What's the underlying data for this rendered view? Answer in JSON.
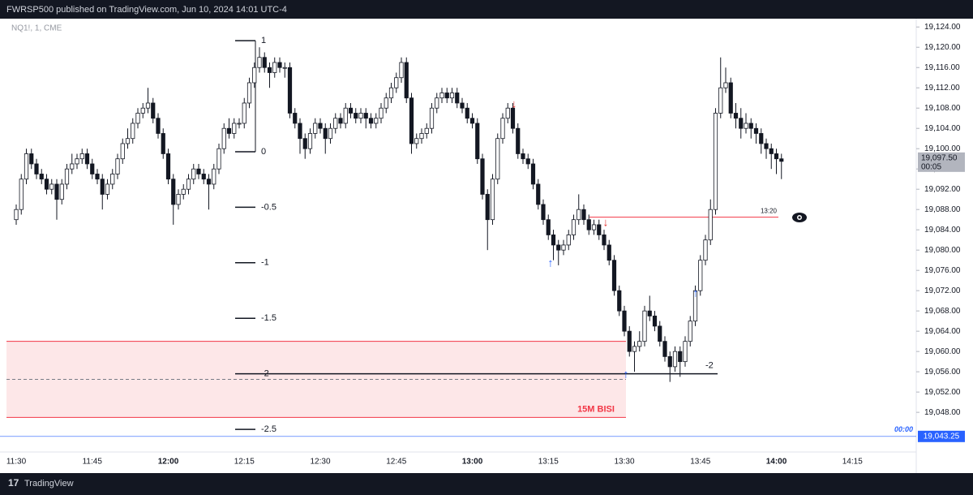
{
  "chart_data": {
    "type": "candlestick",
    "header": "FWRSP500 published on TradingView.com, Jun 10, 2024 14:01 UTC-4",
    "symbol": "NQ1!, 1, CME",
    "brand": "TradingView",
    "ylim": [
      19042.9,
      19125.8
    ],
    "yticks": [
      {
        "value": 19048,
        "label": "19,048.00"
      },
      {
        "value": 19052,
        "label": "19,052.00"
      },
      {
        "value": 19056,
        "label": "19,056.00"
      },
      {
        "value": 19060,
        "label": "19,060.00"
      },
      {
        "value": 19064,
        "label": "19,064.00"
      },
      {
        "value": 19068,
        "label": "19,068.00"
      },
      {
        "value": 19072,
        "label": "19,072.00"
      },
      {
        "value": 19076,
        "label": "19,076.00"
      },
      {
        "value": 19080,
        "label": "19,080.00"
      },
      {
        "value": 19084,
        "label": "19,084.00"
      },
      {
        "value": 19088,
        "label": "19,088.00"
      },
      {
        "value": 19092,
        "label": "19,092.00"
      },
      {
        "value": 19096,
        "label": "19,096.00"
      },
      {
        "value": 19100,
        "label": "19,100.00"
      },
      {
        "value": 19104,
        "label": "19,104.00"
      },
      {
        "value": 19108,
        "label": "19,108.00"
      },
      {
        "value": 19112,
        "label": "19,112.00"
      },
      {
        "value": 19116,
        "label": "19,116.00"
      },
      {
        "value": 19120,
        "label": "19,120.00"
      },
      {
        "value": 19124,
        "label": "19,124.00"
      }
    ],
    "xticks": [
      "11:30",
      "11:45",
      "12:00",
      "12:15",
      "12:30",
      "12:45",
      "13:00",
      "13:15",
      "13:30",
      "13:45",
      "14:00",
      "14:15"
    ],
    "ohlc": [
      [
        19086,
        19089,
        19085,
        19088
      ],
      [
        19088,
        19095,
        19087,
        19094
      ],
      [
        19094,
        19100,
        19093,
        19099
      ],
      [
        19099,
        19100,
        19096,
        19097
      ],
      [
        19097,
        19098,
        19094,
        19095
      ],
      [
        19095,
        19096,
        19093,
        19094
      ],
      [
        19094,
        19095,
        19091,
        19092
      ],
      [
        19092,
        19094,
        19091,
        19093
      ],
      [
        19093,
        19094,
        19086,
        19090
      ],
      [
        19090,
        19094,
        19089,
        19093
      ],
      [
        19093,
        19097,
        19092,
        19096
      ],
      [
        19096,
        19099,
        19095,
        19097
      ],
      [
        19097,
        19099,
        19096,
        19098
      ],
      [
        19098,
        19100,
        19097,
        19099
      ],
      [
        19099,
        19100,
        19096,
        19097
      ],
      [
        19097,
        19098,
        19094,
        19095
      ],
      [
        19095,
        19096,
        19093,
        19094
      ],
      [
        19094,
        19095,
        19088,
        19091
      ],
      [
        19091,
        19094,
        19090,
        19093
      ],
      [
        19093,
        19096,
        19092,
        19095
      ],
      [
        19095,
        19099,
        19094,
        19098
      ],
      [
        19098,
        19102,
        19097,
        19101
      ],
      [
        19101,
        19104,
        19100,
        19102
      ],
      [
        19102,
        19106,
        19101,
        19105
      ],
      [
        19105,
        19108,
        19104,
        19107
      ],
      [
        19107,
        19109,
        19106,
        19108
      ],
      [
        19108,
        19112,
        19107,
        19109
      ],
      [
        19109,
        19110,
        19105,
        19106
      ],
      [
        19106,
        19107,
        19102,
        19103
      ],
      [
        19103,
        19104,
        19098,
        19099
      ],
      [
        19099,
        19100,
        19093,
        19094
      ],
      [
        19094,
        19095,
        19085,
        19089
      ],
      [
        19089,
        19092,
        19088,
        19091
      ],
      [
        19091,
        19093,
        19090,
        19092
      ],
      [
        19092,
        19095,
        19091,
        19094
      ],
      [
        19094,
        19097,
        19093,
        19096
      ],
      [
        19096,
        19097,
        19094,
        19095
      ],
      [
        19095,
        19096,
        19093,
        19094
      ],
      [
        19094,
        19095,
        19088,
        19093
      ],
      [
        19093,
        19097,
        19092,
        19096
      ],
      [
        19096,
        19101,
        19095,
        19100
      ],
      [
        19100,
        19105,
        19099,
        19104
      ],
      [
        19104,
        19106,
        19102,
        19103
      ],
      [
        19103,
        19106,
        19102,
        19105
      ],
      [
        19105,
        19106,
        19104,
        19105
      ],
      [
        19105,
        19110,
        19104,
        19109
      ],
      [
        19109,
        19114,
        19108,
        19113
      ],
      [
        19113,
        19117,
        19112,
        19116
      ],
      [
        19116,
        19120,
        19115,
        19118
      ],
      [
        19118,
        19119,
        19115,
        19116
      ],
      [
        19116,
        19117,
        19112,
        19115
      ],
      [
        19115,
        19118,
        19114,
        19117
      ],
      [
        19117,
        19118,
        19115,
        19116
      ],
      [
        19116,
        19117,
        19114,
        19116
      ],
      [
        19116,
        19117,
        19106,
        19107
      ],
      [
        19107,
        19108,
        19104,
        19105
      ],
      [
        19105,
        19106,
        19099,
        19102
      ],
      [
        19102,
        19103,
        19098,
        19100
      ],
      [
        19100,
        19104,
        19099,
        19103
      ],
      [
        19103,
        19106,
        19102,
        19105
      ],
      [
        19105,
        19106,
        19103,
        19104
      ],
      [
        19104,
        19105,
        19099,
        19102
      ],
      [
        19102,
        19105,
        19101,
        19104
      ],
      [
        19104,
        19107,
        19103,
        19106
      ],
      [
        19106,
        19107,
        19104,
        19105
      ],
      [
        19105,
        19109,
        19104,
        19108
      ],
      [
        19108,
        19109,
        19106,
        19107
      ],
      [
        19107,
        19108,
        19105,
        19106
      ],
      [
        19106,
        19108,
        19105,
        19107
      ],
      [
        19107,
        19108,
        19104,
        19106
      ],
      [
        19106,
        19107,
        19104,
        19105
      ],
      [
        19105,
        19107,
        19104,
        19106
      ],
      [
        19106,
        19109,
        19105,
        19108
      ],
      [
        19108,
        19111,
        19107,
        19110
      ],
      [
        19110,
        19113,
        19109,
        19112
      ],
      [
        19112,
        19115,
        19111,
        19114
      ],
      [
        19114,
        19118,
        19113,
        19117
      ],
      [
        19117,
        19118,
        19109,
        19110
      ],
      [
        19110,
        19111,
        19099,
        19101
      ],
      [
        19101,
        19103,
        19100,
        19102
      ],
      [
        19102,
        19104,
        19101,
        19103
      ],
      [
        19103,
        19105,
        19102,
        19104
      ],
      [
        19104,
        19109,
        19103,
        19108
      ],
      [
        19108,
        19111,
        19107,
        19110
      ],
      [
        19110,
        19112,
        19109,
        19111
      ],
      [
        19111,
        19112,
        19109,
        19110
      ],
      [
        19110,
        19112,
        19109,
        19111
      ],
      [
        19111,
        19112,
        19108,
        19109
      ],
      [
        19109,
        19110,
        19107,
        19108
      ],
      [
        19108,
        19109,
        19105,
        19106
      ],
      [
        19106,
        19107,
        19104,
        19105
      ],
      [
        19105,
        19106,
        19097,
        19098
      ],
      [
        19098,
        19099,
        19090,
        19091
      ],
      [
        19091,
        19092,
        19080,
        19086
      ],
      [
        19086,
        19095,
        19085,
        19094
      ],
      [
        19094,
        19103,
        19093,
        19102
      ],
      [
        19102,
        19107,
        19101,
        19106
      ],
      [
        19106,
        19109,
        19105,
        19108
      ],
      [
        19108,
        19109,
        19103,
        19104
      ],
      [
        19104,
        19105,
        19098,
        19099
      ],
      [
        19099,
        19100,
        19097,
        19098
      ],
      [
        19098,
        19099,
        19096,
        19097
      ],
      [
        19097,
        19098,
        19092,
        19093
      ],
      [
        19093,
        19094,
        19088,
        19089
      ],
      [
        19089,
        19090,
        19085,
        19086
      ],
      [
        19086,
        19087,
        19082,
        19083
      ],
      [
        19083,
        19084,
        19078,
        19081
      ],
      [
        19081,
        19082,
        19077,
        19080
      ],
      [
        19080,
        19082,
        19079,
        19081
      ],
      [
        19081,
        19084,
        19080,
        19083
      ],
      [
        19083,
        19087,
        19082,
        19086
      ],
      [
        19086,
        19091,
        19085,
        19088
      ],
      [
        19088,
        19089,
        19085,
        19086
      ],
      [
        19086,
        19087,
        19083,
        19084
      ],
      [
        19084,
        19086,
        19083,
        19085
      ],
      [
        19085,
        19086,
        19082,
        19083
      ],
      [
        19083,
        19084,
        19080,
        19081
      ],
      [
        19081,
        19082,
        19077,
        19078
      ],
      [
        19078,
        19079,
        19071,
        19072
      ],
      [
        19072,
        19073,
        19067,
        19068
      ],
      [
        19068,
        19069,
        19063,
        19064
      ],
      [
        19064,
        19065,
        19059,
        19060
      ],
      [
        19060,
        19062,
        19056,
        19061
      ],
      [
        19061,
        19064,
        19060,
        19062
      ],
      [
        19062,
        19069,
        19061,
        19068
      ],
      [
        19068,
        19071,
        19066,
        19067
      ],
      [
        19067,
        19068,
        19064,
        19065
      ],
      [
        19065,
        19066,
        19061,
        19062
      ],
      [
        19062,
        19063,
        19058,
        19059
      ],
      [
        19059,
        19060,
        19054,
        19057
      ],
      [
        19057,
        19061,
        19056,
        19060
      ],
      [
        19060,
        19061,
        19055,
        19058
      ],
      [
        19058,
        19063,
        19057,
        19062
      ],
      [
        19062,
        19067,
        19061,
        19066
      ],
      [
        19066,
        19073,
        19065,
        19072
      ],
      [
        19072,
        19079,
        19071,
        19078
      ],
      [
        19078,
        19083,
        19077,
        19082
      ],
      [
        19082,
        19090,
        19081,
        19088
      ],
      [
        19088,
        19108,
        19087,
        19107
      ],
      [
        19107,
        19118,
        19106,
        19112
      ],
      [
        19112,
        19116,
        19111,
        19113
      ],
      [
        19113,
        19114,
        19106,
        19107
      ],
      [
        19107,
        19109,
        19104,
        19106
      ],
      [
        19106,
        19108,
        19102,
        19104
      ],
      [
        19104,
        19107,
        19103,
        19105
      ],
      [
        19105,
        19106,
        19102,
        19104
      ],
      [
        19104,
        19105,
        19101,
        19103
      ],
      [
        19103,
        19104,
        19099,
        19101
      ],
      [
        19101,
        19102,
        19098,
        19100
      ],
      [
        19100,
        19101,
        19096,
        19099
      ],
      [
        19099,
        19100,
        19095,
        19098
      ],
      [
        19098,
        19099,
        19094,
        19097.5
      ]
    ],
    "last_price": {
      "value": 19097.5,
      "label": "19,097.50",
      "countdown": "00:05"
    },
    "blue_line": {
      "value": 19043.25,
      "label": "19,043.25",
      "time": "00:00"
    },
    "red_line": {
      "value": 19086.5,
      "label": "13:20"
    },
    "zone": {
      "top": 19062,
      "bottom": 19047,
      "mid": 19054.5,
      "label": "15M BISI"
    },
    "fib": {
      "high": 19121.3,
      "low": 19099.4,
      "levels": [
        1,
        0,
        -0.5,
        -1,
        -1.5,
        -2,
        -2.5
      ]
    }
  }
}
